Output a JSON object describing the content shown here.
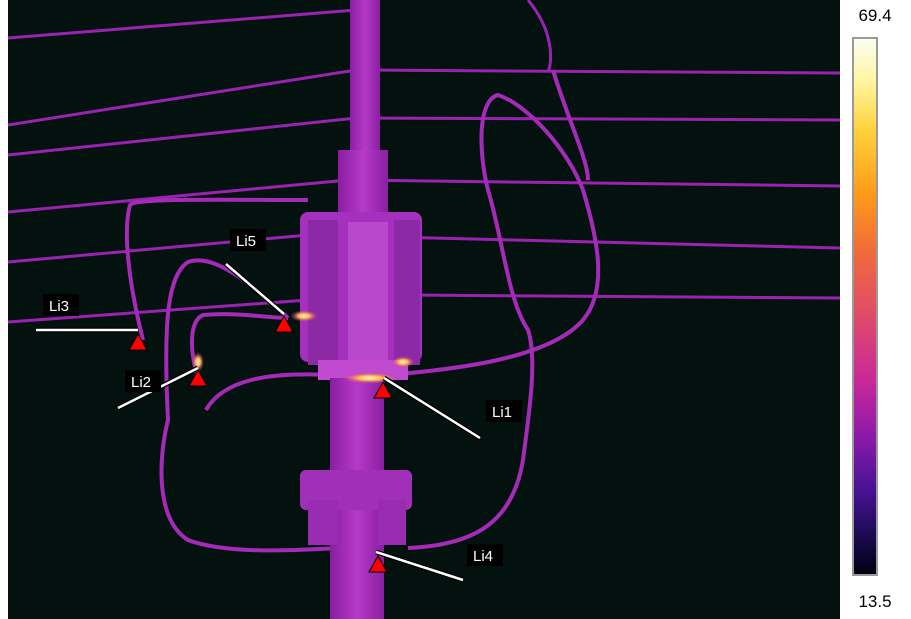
{
  "thermal_image": {
    "colors": {
      "background": "#03120f",
      "wire": "#a126b4",
      "pole": "#b038c6",
      "hotspot": "#fff0a0",
      "marker": "#ff0000",
      "leader": "#ffffff",
      "label_bg": "#000000",
      "label_text": "#ffffff"
    },
    "labels": {
      "li1": "Li1",
      "li2": "Li2",
      "li3": "Li3",
      "li4": "Li4",
      "li5": "Li5"
    }
  },
  "scale": {
    "max": "69.4",
    "min": "13.5",
    "palette": "ironbow"
  }
}
